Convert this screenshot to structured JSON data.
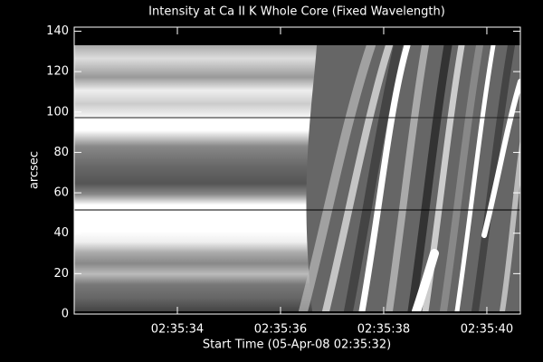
{
  "chart_data": {
    "type": "image",
    "title": "Intensity at Ca II K Whole Core (Fixed Wavelength)",
    "xlabel": "Start Time (05-Apr-08 02:35:32)",
    "ylabel": "arcsec",
    "xlim": [
      0,
      8.65
    ],
    "xticks": [
      {
        "value": 2,
        "label": "02:35:34"
      },
      {
        "value": 4,
        "label": "02:35:36"
      },
      {
        "value": 6,
        "label": "02:35:38"
      },
      {
        "value": 8,
        "label": "02:35:40"
      }
    ],
    "ylim": [
      0,
      142
    ],
    "yticks": [
      0,
      20,
      40,
      60,
      80,
      100,
      120,
      140
    ]
  }
}
